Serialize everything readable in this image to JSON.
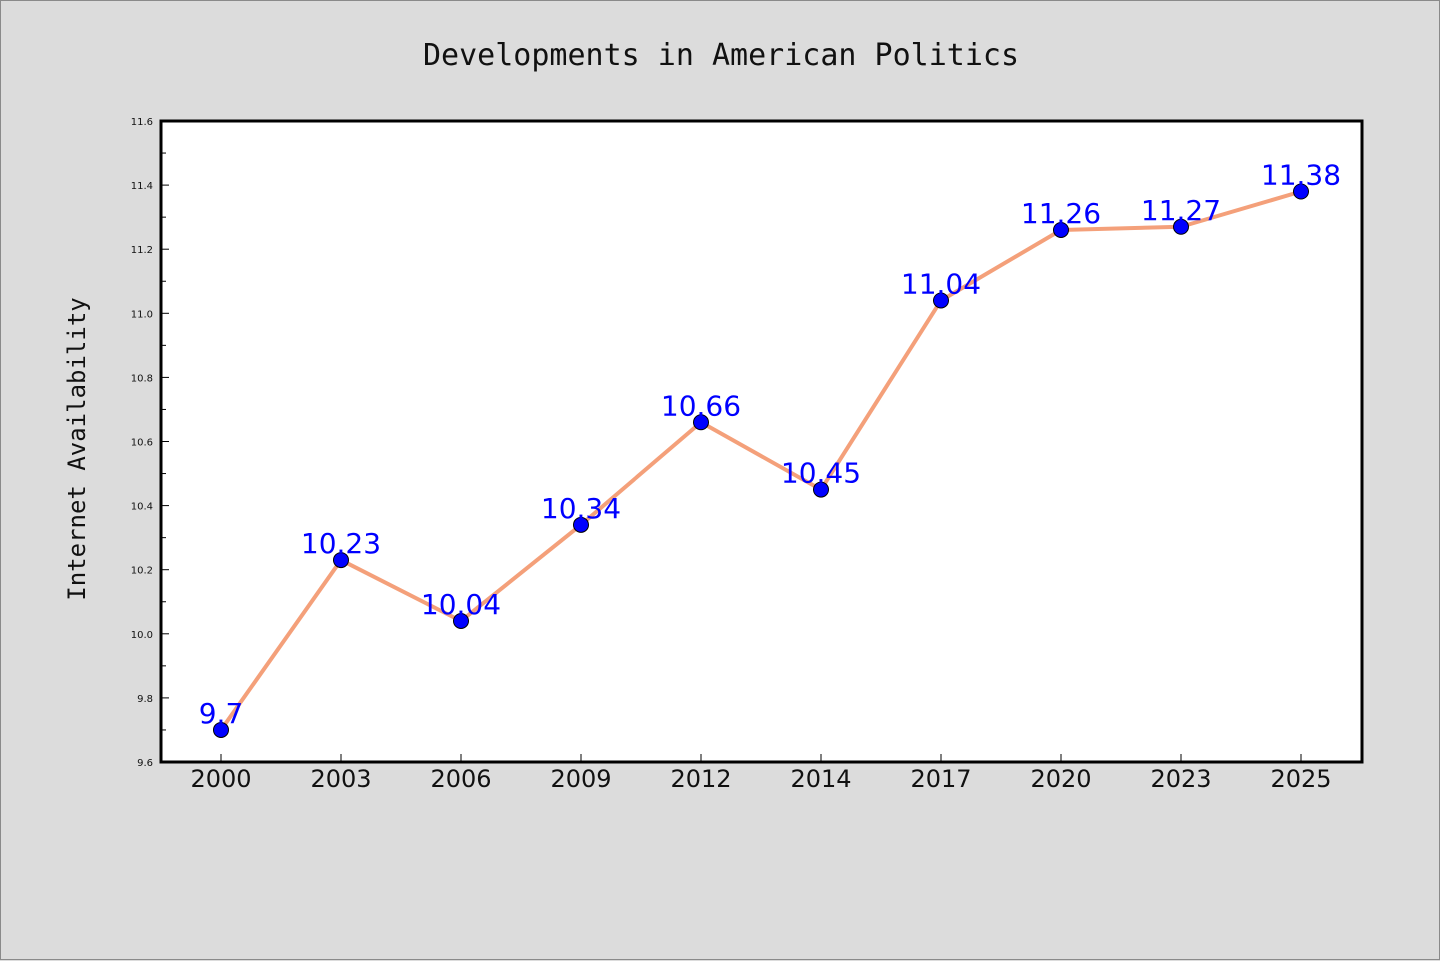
{
  "chart_data": {
    "type": "line",
    "title": "Developments in American Politics",
    "xlabel": "",
    "ylabel": "Internet Availability",
    "categories": [
      "2000",
      "2003",
      "2006",
      "2009",
      "2012",
      "2014",
      "2017",
      "2020",
      "2023",
      "2025"
    ],
    "series": [
      {
        "values": [
          9.7,
          10.23,
          10.04,
          10.34,
          10.66,
          10.45,
          11.04,
          11.26,
          11.27,
          11.38
        ],
        "labels": [
          "9.7",
          "10.23",
          "10.04",
          "10.34",
          "10.66",
          "10.45",
          "11.04",
          "11.26",
          "11.27",
          "11.38"
        ]
      }
    ],
    "ylim": [
      9.6,
      11.6
    ],
    "yticks": [
      "9.6",
      "9.8",
      "10.0",
      "10.2",
      "10.4",
      "10.6",
      "10.8",
      "11.0",
      "11.2",
      "11.4",
      "11.6"
    ],
    "grid": false,
    "colors": {
      "line": "#f4a07a",
      "marker": "#0000ff",
      "data_label": "#0000ff",
      "background": "#dcdcdc",
      "plot_area": "#ffffff"
    }
  }
}
